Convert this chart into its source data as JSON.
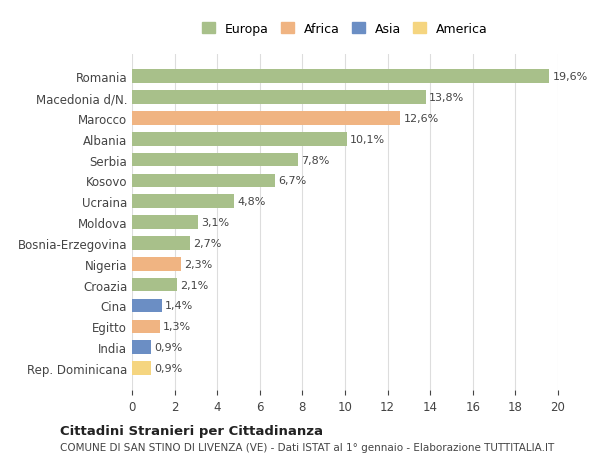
{
  "categories": [
    "Romania",
    "Macedonia d/N.",
    "Marocco",
    "Albania",
    "Serbia",
    "Kosovo",
    "Ucraina",
    "Moldova",
    "Bosnia-Erzegovina",
    "Nigeria",
    "Croazia",
    "Cina",
    "Egitto",
    "India",
    "Rep. Dominicana"
  ],
  "values": [
    19.6,
    13.8,
    12.6,
    10.1,
    7.8,
    6.7,
    4.8,
    3.1,
    2.7,
    2.3,
    2.1,
    1.4,
    1.3,
    0.9,
    0.9
  ],
  "labels": [
    "19,6%",
    "13,8%",
    "12,6%",
    "10,1%",
    "7,8%",
    "6,7%",
    "4,8%",
    "3,1%",
    "2,7%",
    "2,3%",
    "2,1%",
    "1,4%",
    "1,3%",
    "0,9%",
    "0,9%"
  ],
  "colors": [
    "#a8c08a",
    "#a8c08a",
    "#f0b482",
    "#a8c08a",
    "#a8c08a",
    "#a8c08a",
    "#a8c08a",
    "#a8c08a",
    "#a8c08a",
    "#f0b482",
    "#a8c08a",
    "#6b8ec4",
    "#f0b482",
    "#6b8ec4",
    "#f5d580"
  ],
  "legend_labels": [
    "Europa",
    "Africa",
    "Asia",
    "America"
  ],
  "legend_colors": [
    "#a8c08a",
    "#f0b482",
    "#6b8ec4",
    "#f5d580"
  ],
  "title": "Cittadini Stranieri per Cittadinanza",
  "subtitle": "COMUNE DI SAN STINO DI LIVENZA (VE) - Dati ISTAT al 1° gennaio - Elaborazione TUTTITALIA.IT",
  "xlim": [
    0,
    20
  ],
  "xticks": [
    0,
    2,
    4,
    6,
    8,
    10,
    12,
    14,
    16,
    18,
    20
  ],
  "background_color": "#ffffff",
  "grid_color": "#dddddd"
}
